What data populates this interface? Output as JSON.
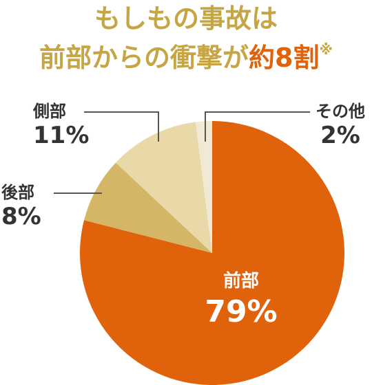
{
  "title": {
    "line1": "もしもの事故は",
    "line2_prefix": "前部からの衝撃が",
    "line2_accent": "約8割",
    "note_mark": "※"
  },
  "colors": {
    "title": "#c6a544",
    "accent": "#e0620a",
    "front": "#e0620a",
    "side": "#e9d9a8",
    "rear": "#d4b666",
    "other": "#f1e9d3"
  },
  "chart_data": {
    "type": "pie",
    "slices": [
      {
        "label": "前部",
        "value": 79,
        "display": "79%",
        "color": "#e0620a"
      },
      {
        "label": "後部",
        "value": 8,
        "display": "8%",
        "color": "#d4b666"
      },
      {
        "label": "側部",
        "value": 11,
        "display": "11%",
        "color": "#e9d9a8"
      },
      {
        "label": "その他",
        "value": 2,
        "display": "2%",
        "color": "#f1e9d3"
      }
    ],
    "start": "12 o'clock",
    "direction": "clockwise"
  }
}
